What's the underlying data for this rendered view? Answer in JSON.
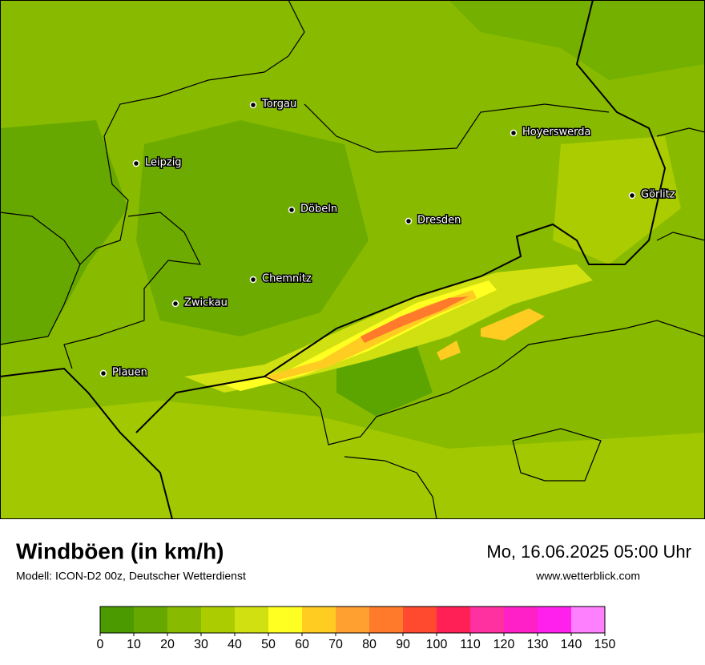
{
  "map": {
    "cities": [
      "Torgau",
      "Leipzig",
      "Hoyerswerda",
      "Görlitz",
      "Döbeln",
      "Dresden",
      "Chemnitz",
      "Zwickau",
      "Plauen"
    ]
  },
  "title": "Windböen (in km/h)",
  "subtitle": "Modell: ICON-D2 00z, Deutscher Wetterdienst",
  "datetime": "Mo, 16.06.2025 05:00 Uhr",
  "website": "www.wetterblick.com",
  "legend": {
    "colors": [
      "#4a9a00",
      "#66a800",
      "#88bb00",
      "#aacc00",
      "#d0e010",
      "#ffff22",
      "#ffcc22",
      "#ffa030",
      "#ff7a2a",
      "#ff4a30",
      "#ff2055",
      "#ff30a0",
      "#ff20c8",
      "#ff20ee",
      "#ff80ff"
    ],
    "ticks": [
      0,
      10,
      20,
      30,
      40,
      50,
      60,
      70,
      80,
      90,
      100,
      110,
      120,
      130,
      140,
      150
    ]
  }
}
